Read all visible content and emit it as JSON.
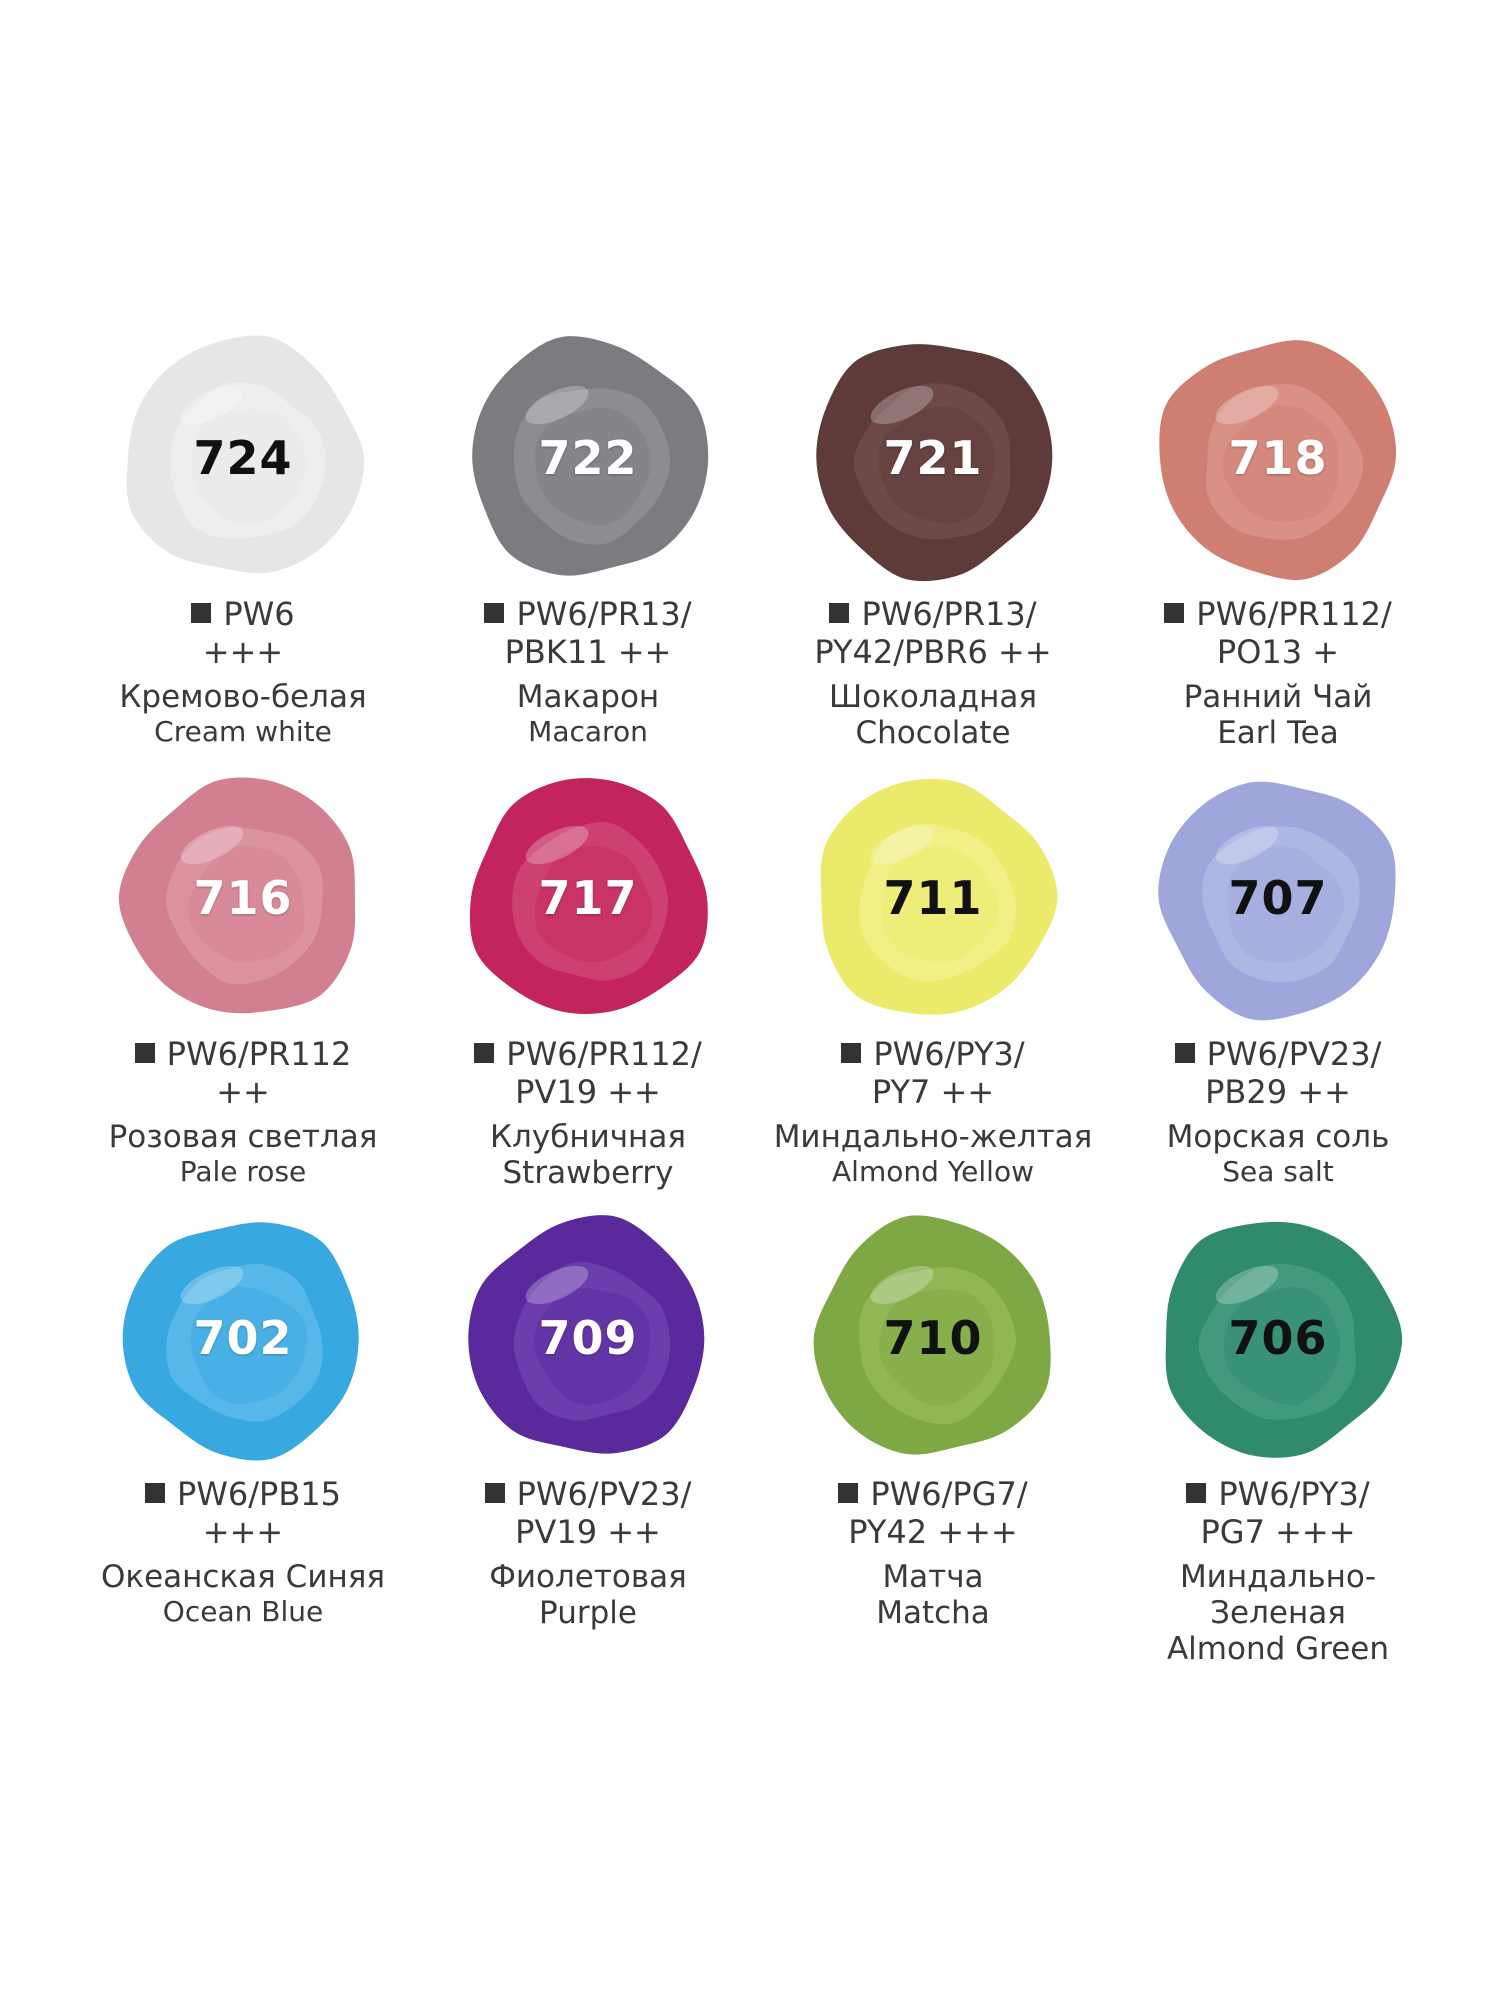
{
  "swatches": [
    {
      "code": "724",
      "pigments_line1": "PW6",
      "pigments_line2": "+++",
      "name_ru": "Кремово-белая",
      "name_ru_2": "",
      "name_en": "Cream white",
      "color": "#e6e6e6",
      "highlight": "#f4f4f4",
      "code_style": "dark",
      "en_big": false
    },
    {
      "code": "722",
      "pigments_line1": "PW6/PR13/",
      "pigments_line2": "PBK11 ++",
      "name_ru": "Макарон",
      "name_ru_2": "",
      "name_en": "Macaron",
      "color": "#7d7a80",
      "highlight": "#9c9aa0",
      "code_style": "light",
      "en_big": false
    },
    {
      "code": "721",
      "pigments_line1": "PW6/PR13/",
      "pigments_line2": "PY42/PBR6 ++",
      "name_ru": "Шоколадная",
      "name_ru_2": "",
      "name_en": "Chocolate",
      "color": "#5e3a38",
      "highlight": "#7b5553",
      "code_style": "light",
      "en_big": true
    },
    {
      "code": "718",
      "pigments_line1": "PW6/PR112/",
      "pigments_line2": "PO13 +",
      "name_ru": "Ранний Чай",
      "name_ru_2": "",
      "name_en": "Earl Tea",
      "color": "#cf7f72",
      "highlight": "#e4a196",
      "code_style": "light",
      "en_big": true
    },
    {
      "code": "716",
      "pigments_line1": "PW6/PR112",
      "pigments_line2": "++",
      "name_ru": "Розовая светлая",
      "name_ru_2": "",
      "name_en": "Pale rose",
      "color": "#d2808f",
      "highlight": "#e4a3ae",
      "code_style": "light",
      "en_big": false
    },
    {
      "code": "717",
      "pigments_line1": "PW6/PR112/",
      "pigments_line2": "PV19 ++",
      "name_ru": "Клубничная",
      "name_ru_2": "",
      "name_en": "Strawberry",
      "color": "#c3245e",
      "highlight": "#d65784",
      "code_style": "light",
      "en_big": true
    },
    {
      "code": "711",
      "pigments_line1": "PW6/PY3/",
      "pigments_line2": "PY7 ++",
      "name_ru": "Миндально-желтая",
      "name_ru_2": "",
      "name_en": "Almond Yellow",
      "color": "#ebea6b",
      "highlight": "#f5f39c",
      "code_style": "dark",
      "en_big": false
    },
    {
      "code": "707",
      "pigments_line1": "PW6/PV23/",
      "pigments_line2": "PB29 ++",
      "name_ru": "Морская соль",
      "name_ru_2": "",
      "name_en": "Sea salt",
      "color": "#9ea6dc",
      "highlight": "#bcc2ea",
      "code_style": "dark",
      "en_big": false
    },
    {
      "code": "702",
      "pigments_line1": "PW6/PB15",
      "pigments_line2": "+++",
      "name_ru": "Океанская Синяя",
      "name_ru_2": "",
      "name_en": "Ocean Blue",
      "color": "#38a8e0",
      "highlight": "#6fc2ee",
      "code_style": "light",
      "en_big": false
    },
    {
      "code": "709",
      "pigments_line1": "PW6/PV23/",
      "pigments_line2": "PV19 ++",
      "name_ru": "Фиолетовая",
      "name_ru_2": "",
      "name_en": "Purple",
      "color": "#5a2a9c",
      "highlight": "#7a4dbb",
      "code_style": "light",
      "en_big": true
    },
    {
      "code": "710",
      "pigments_line1": "PW6/PG7/",
      "pigments_line2": "PY42  +++",
      "name_ru": "Матча",
      "name_ru_2": "",
      "name_en": "Matcha",
      "color": "#7ea843",
      "highlight": "#9cc366",
      "code_style": "dark",
      "en_big": true
    },
    {
      "code": "706",
      "pigments_line1": "PW6/PY3/",
      "pigments_line2": "PG7 +++",
      "name_ru": "Миндально-",
      "name_ru_2": "Зеленая",
      "name_en": "Almond Green",
      "color": "#2f8a6e",
      "highlight": "#54a68c",
      "code_style": "dark",
      "en_big": true
    }
  ]
}
